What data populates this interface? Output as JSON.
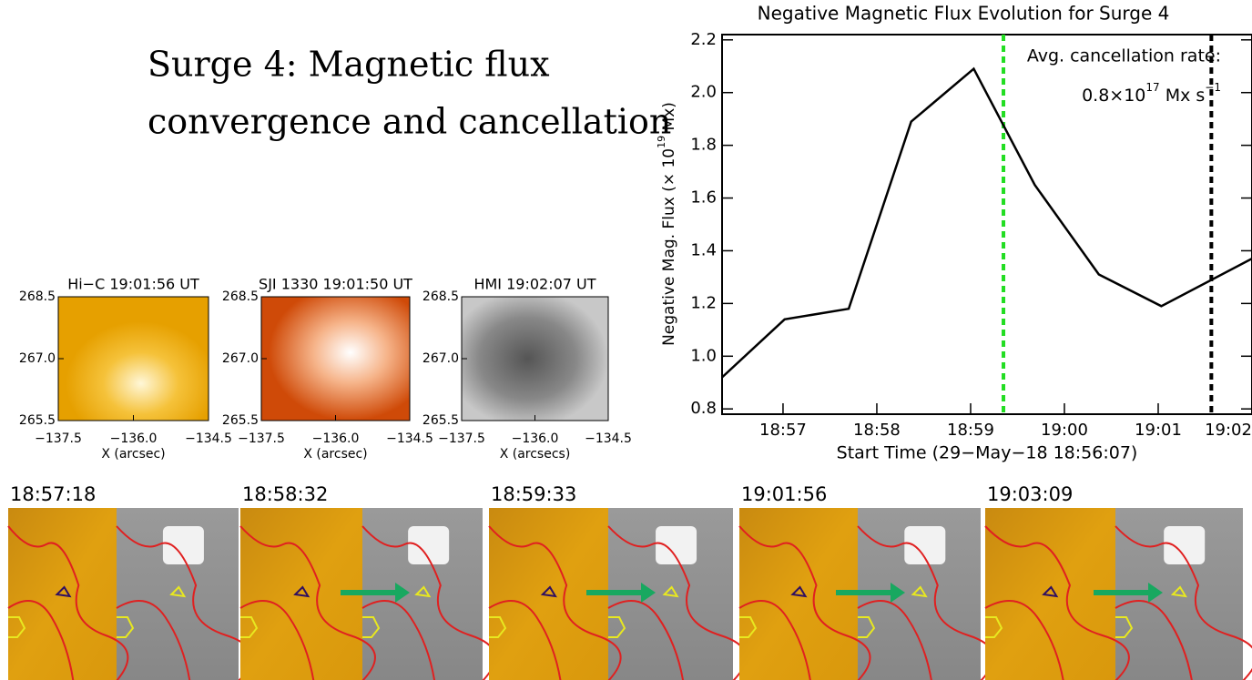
{
  "title_lines": [
    "Surge 4: Magnetic flux",
    "convergence and cancellation"
  ],
  "chart_data": {
    "type": "line",
    "title": "Negative Magnetic Flux Evolution for Surge 4",
    "xlabel": "Start Time (29−May−18 18:56:07)",
    "ylabel": [
      "Negative Mag. Flux (× 10",
      "19",
      " Mx)"
    ],
    "x": [
      14,
      54,
      95,
      135,
      175,
      214,
      255,
      295,
      353
    ],
    "values": [
      0.92,
      1.14,
      1.18,
      1.89,
      2.09,
      1.65,
      1.31,
      1.19,
      1.37
    ],
    "color": "#000000",
    "xlim": [
      14,
      353
    ],
    "ylim": [
      0.78,
      2.22
    ],
    "xticks": [
      {
        "value": 53,
        "label": "18:57"
      },
      {
        "value": 113,
        "label": "18:58"
      },
      {
        "value": 173,
        "label": "18:59"
      },
      {
        "value": 233,
        "label": "19:00"
      },
      {
        "value": 293,
        "label": "19:01"
      },
      {
        "value": 353,
        "label": "19:02"
      }
    ],
    "yticks": [
      {
        "value": 0.8,
        "label": "0.8"
      },
      {
        "value": 1.0,
        "label": "1.0"
      },
      {
        "value": 1.2,
        "label": "1.2"
      },
      {
        "value": 1.4,
        "label": "1.4"
      },
      {
        "value": 1.6,
        "label": "1.6"
      },
      {
        "value": 1.8,
        "label": "1.8"
      },
      {
        "value": 2.0,
        "label": "2.0"
      },
      {
        "value": 2.2,
        "label": "2.2"
      }
    ],
    "vlines": [
      {
        "x": 194,
        "color": "#22dd22"
      },
      {
        "x": 327,
        "color": "#000000"
      }
    ],
    "annotation": {
      "line1": "Avg. cancellation rate:",
      "line2": [
        "0.8×10",
        "17",
        " Mx s",
        "−1"
      ]
    }
  },
  "image_panels": [
    {
      "title": "Hi−C 19:01:56 UT",
      "xlabel": "X (arcsec)"
    },
    {
      "title": "SJI 1330 19:01:50 UT",
      "xlabel": "X (arcsec)"
    },
    {
      "title": "HMI 19:02:07 UT",
      "xlabel": "X (arcsecs)"
    }
  ],
  "panel_yticks": [
    268.5,
    {
      "value": 267.0,
      "label": "267.0"
    },
    265.5
  ],
  "panel_xticks": [
    {
      "value": -137.5,
      "label": "−137.5"
    },
    {
      "value": -136.0,
      "label": "−136.0"
    },
    {
      "value": -134.5,
      "label": "−134.5"
    }
  ],
  "frames": [
    "18:57:18",
    "18:58:32",
    "18:59:33",
    "19:01:56",
    "19:03:09"
  ]
}
